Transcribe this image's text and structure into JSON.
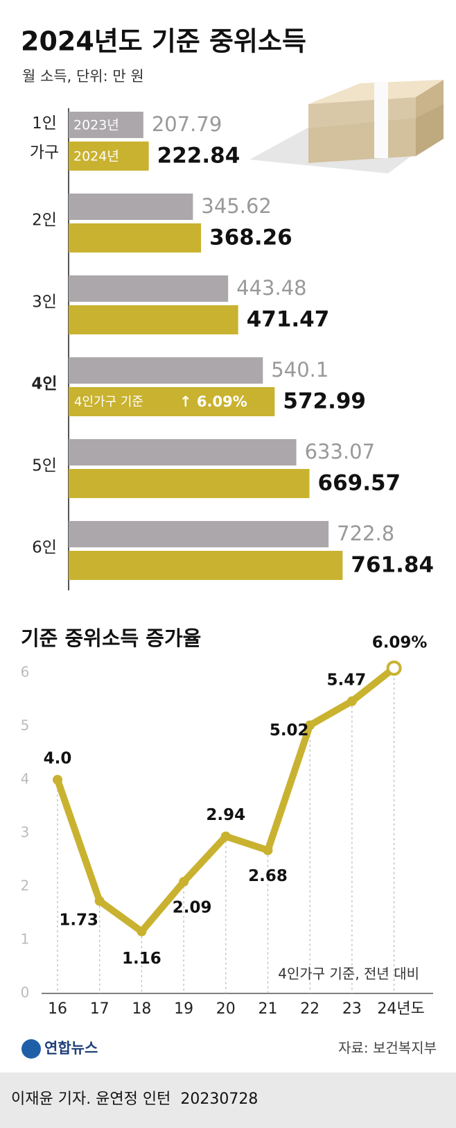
{
  "chart_data": [
    {
      "type": "hbar",
      "title": "2024년도 기준 중위소득",
      "subtitle": "월 소득, 단위: 만 원",
      "categories": [
        "1인 가구",
        "2인",
        "3인",
        "4인",
        "5인",
        "6인"
      ],
      "series": [
        {
          "name": "2023년",
          "color": "#aba7aa",
          "values": [
            207.79,
            345.62,
            443.48,
            540.1,
            633.07,
            722.8
          ]
        },
        {
          "name": "2024년",
          "color": "#c9b230",
          "values": [
            222.84,
            368.26,
            471.47,
            572.99,
            669.57,
            761.84
          ]
        }
      ],
      "xlim": [
        0,
        1000
      ],
      "annotation": {
        "text": "4인가구 기준",
        "change": "↑ 6.09%"
      }
    },
    {
      "type": "line",
      "title": "기준 중위소득 증가율",
      "categories": [
        "16",
        "17",
        "18",
        "19",
        "20",
        "21",
        "22",
        "23",
        "24년도"
      ],
      "values": [
        4.0,
        1.73,
        1.16,
        2.09,
        2.94,
        2.68,
        5.02,
        5.47,
        6.09
      ],
      "value_labels": [
        "4.0",
        "1.73",
        "1.16",
        "2.09",
        "2.94",
        "2.68",
        "5.02",
        "5.47",
        "6.09%"
      ],
      "color": "#c9b230",
      "ylim": [
        0,
        6
      ],
      "yticks": [
        0,
        1,
        2,
        3,
        4,
        5,
        6
      ],
      "annotation": "4인가구 기준, 전년 대비",
      "source": "자료: 보건복지부",
      "logo": "연합뉴스",
      "credit": "이재윤 기자. 윤연정 인턴  20230728"
    }
  ]
}
